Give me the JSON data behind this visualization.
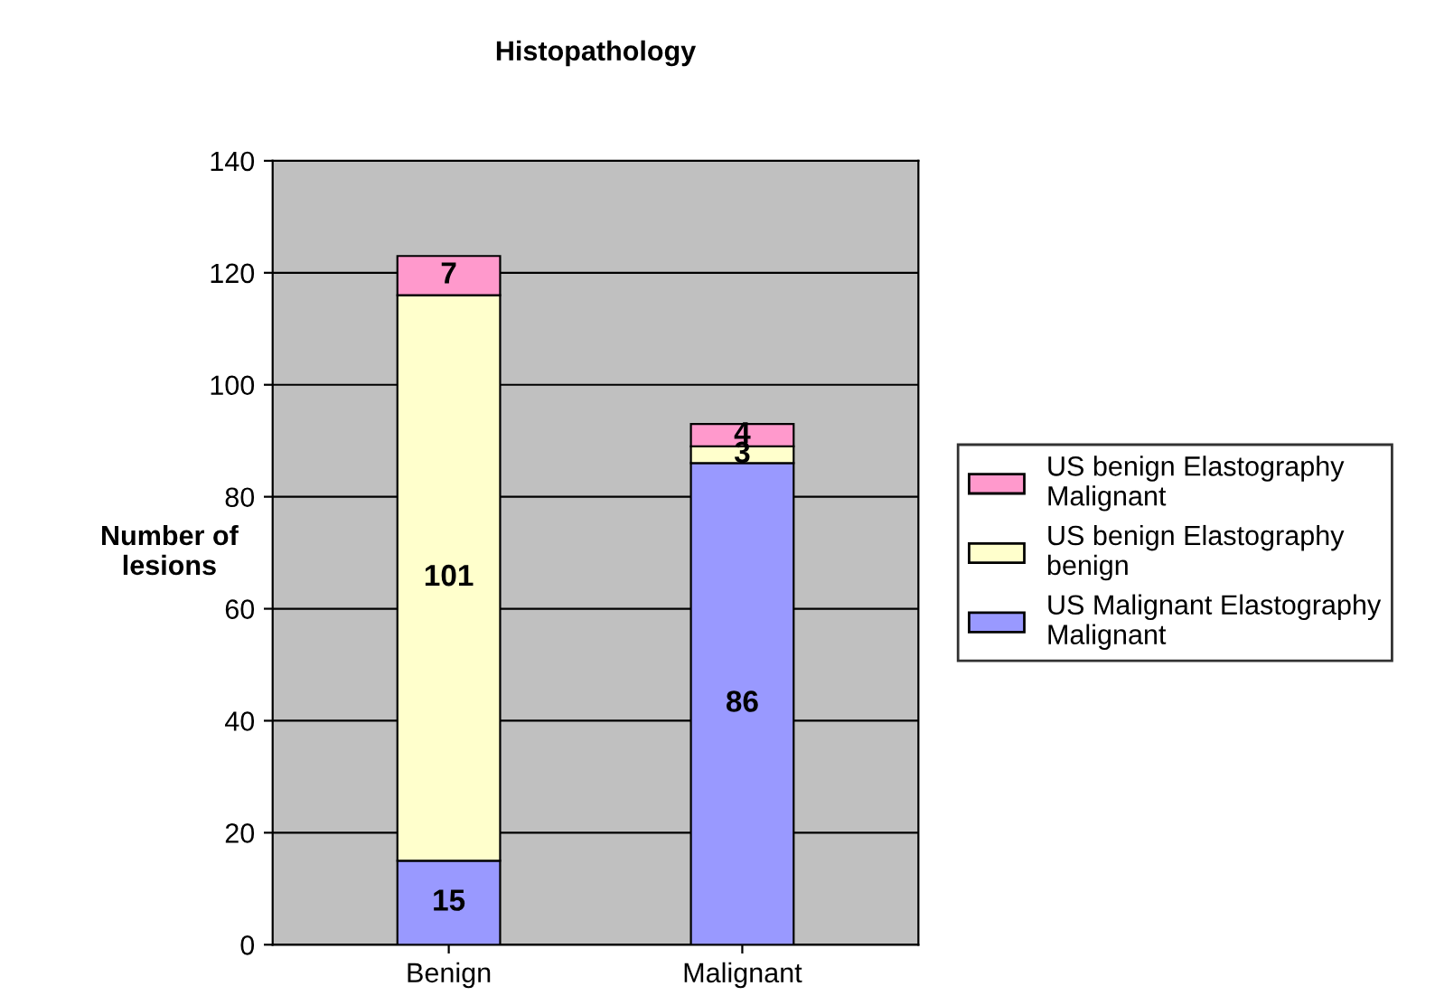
{
  "chart_data": {
    "type": "bar",
    "title": "Histopathology",
    "ylabel": "Number of lesions",
    "categories": [
      "Benign",
      "Malignant"
    ],
    "stacked": true,
    "data_labels": true,
    "grid": "y",
    "legend": "right",
    "ylim": [
      0,
      140
    ],
    "yticks": [
      0,
      20,
      40,
      60,
      80,
      100,
      120,
      140
    ],
    "series": [
      {
        "name": "US Malignant Elastography Malignant",
        "color": "#9999ff",
        "values": [
          15,
          86
        ]
      },
      {
        "name": "US benign Elastography benign",
        "color": "#ffffcc",
        "values": [
          101,
          3
        ]
      },
      {
        "name": "US benign Elastography Malignant",
        "color": "#ff99cc",
        "values": [
          7,
          4
        ]
      }
    ]
  }
}
